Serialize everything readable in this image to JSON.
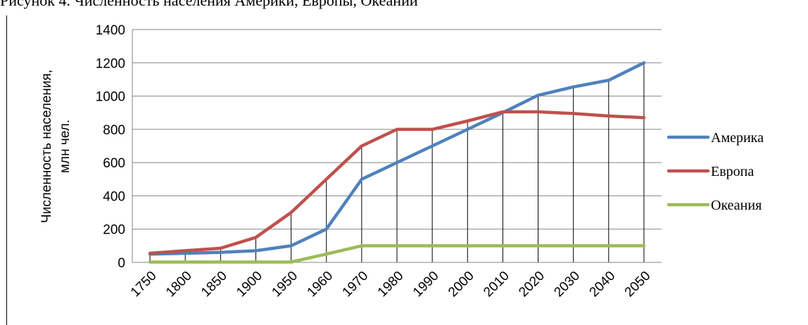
{
  "caption": "Рисунок 4. Численность населения Америки, Европы, Океании",
  "chart_data": {
    "type": "line",
    "title": "",
    "xlabel": "",
    "ylabel": "Численность населения, млн чел.",
    "ylabel_line1": "Численность населения,",
    "ylabel_line2": "млн чел.",
    "categories": [
      "1750",
      "1800",
      "1850",
      "1900",
      "1950",
      "1960",
      "1970",
      "1980",
      "1990",
      "2000",
      "2010",
      "2020",
      "2030",
      "2040",
      "2050"
    ],
    "ylim": [
      0,
      1400
    ],
    "yticks": [
      0,
      200,
      400,
      600,
      800,
      1000,
      1200,
      1400
    ],
    "grid": true,
    "drop_lines": true,
    "legend_position": "right",
    "series": [
      {
        "name": "Америка",
        "color": "#4F81BD",
        "values": [
          50,
          55,
          60,
          70,
          100,
          200,
          500,
          600,
          700,
          800,
          900,
          1005,
          1055,
          1095,
          1200
        ]
      },
      {
        "name": "Европа",
        "color": "#C0504D",
        "values": [
          55,
          70,
          85,
          150,
          300,
          500,
          700,
          800,
          800,
          850,
          905,
          905,
          895,
          880,
          870
        ]
      },
      {
        "name": "Океания",
        "color": "#9BBB59",
        "values": [
          2,
          2,
          2,
          2,
          2,
          50,
          100,
          100,
          100,
          100,
          100,
          100,
          100,
          100,
          100
        ]
      }
    ]
  }
}
